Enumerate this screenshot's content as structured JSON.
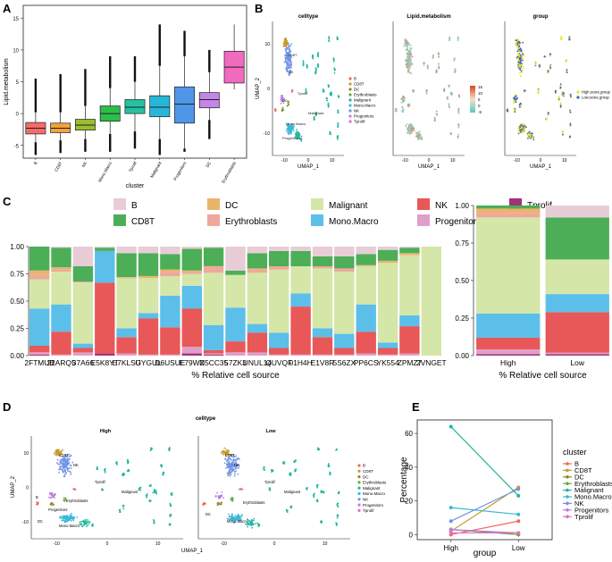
{
  "panel_labels": {
    "a": "A",
    "b": "B",
    "c": "C",
    "d": "D",
    "e": "E"
  },
  "colors": {
    "B": "#E8CDD6",
    "CD8T": "#4DAE58",
    "DC": "#EBB46C",
    "Erythroblasts": "#EFA89A",
    "Malignant": "#D4E6A8",
    "Mono.Macro": "#5BBFEA",
    "NK": "#E85858",
    "Progenitors": "#E09FC8",
    "Tprolif": "#A0337A",
    "High": "#E6E62A",
    "Low": "#3D62C8"
  },
  "chart_data": [
    {
      "id": "A",
      "type": "box",
      "title": "",
      "xlabel": "cluster",
      "ylabel": "Lipid.metabolism",
      "ylim": [
        -7,
        17
      ],
      "yticks": [
        -5,
        0,
        5,
        10,
        15
      ],
      "categories": [
        "B",
        "CD8T",
        "NK",
        "Mono.Macro",
        "Tprolif",
        "Malignant",
        "Progenitors",
        "DC",
        "Erythroblasts"
      ],
      "boxes": [
        {
          "name": "B",
          "color": "#F46B6B",
          "whislo": -4.5,
          "q1": -3.2,
          "med": -2.3,
          "q3": -1.4,
          "whishi": 0.2,
          "outlo": -6.5,
          "outhi": 5.5
        },
        {
          "name": "CD8T",
          "color": "#F2A33A",
          "whislo": -4.2,
          "q1": -3.0,
          "med": -2.3,
          "q3": -1.5,
          "whishi": 0.2,
          "outlo": -6.2,
          "outhi": 6.2
        },
        {
          "name": "NK",
          "color": "#9BBE2E",
          "whislo": -4.0,
          "q1": -2.6,
          "med": -1.8,
          "q3": -0.9,
          "whishi": 1.2,
          "outlo": -6.0,
          "outhi": 7.0
        },
        {
          "name": "Mono.Macro",
          "color": "#2DBE4A",
          "whislo": -3.2,
          "q1": -1.2,
          "med": 0.0,
          "q3": 1.2,
          "whishi": 4.0,
          "outlo": -6.0,
          "outhi": 9.0
        },
        {
          "name": "Tprolif",
          "color": "#27C0A0",
          "whislo": -2.8,
          "q1": 0.0,
          "med": 1.0,
          "q3": 2.2,
          "whishi": 5.0,
          "outlo": -5.5,
          "outhi": 9.0
        },
        {
          "name": "Malignant",
          "color": "#28B6D8",
          "whislo": -4.0,
          "q1": -0.5,
          "med": 1.0,
          "q3": 2.8,
          "whishi": 7.5,
          "outlo": -6.5,
          "outhi": 14.0
        },
        {
          "name": "Progenitors",
          "color": "#4F96E8",
          "whislo": -5.5,
          "q1": -1.5,
          "med": 1.5,
          "q3": 4.2,
          "whishi": 9.0,
          "outlo": -6.0,
          "outhi": 13.0
        },
        {
          "name": "DC",
          "color": "#C485E8",
          "whislo": -1.0,
          "q1": 0.9,
          "med": 2.2,
          "q3": 3.3,
          "whishi": 6.5,
          "outlo": -4.0,
          "outhi": 10.0
        },
        {
          "name": "Erythroblasts",
          "color": "#F06ABE",
          "whislo": 3.8,
          "q1": 4.8,
          "med": 7.3,
          "q3": 9.8,
          "whishi": 14.0,
          "outlo": null,
          "outhi": null
        }
      ]
    },
    {
      "id": "B1",
      "type": "scatter",
      "title": "celltype",
      "xlabel": "UMAP_1",
      "ylabel": "UMAP_2",
      "xticks": [
        -10,
        0,
        10
      ],
      "yticks": [
        -10,
        0,
        10
      ],
      "annotations": [
        "Malignant",
        "Mono.Macro",
        "Progenitors",
        "CD8T",
        "NK",
        "DC",
        "Tprolif"
      ],
      "legend": [
        "B",
        "CD8T",
        "DC",
        "Erythroblasts",
        "Malignant",
        "Mono.Macro",
        "NK",
        "Progenitors",
        "Tprolif"
      ]
    },
    {
      "id": "B2",
      "type": "scatter",
      "title": "Lipid.metabolism",
      "xlabel": "UMAP_1",
      "ylabel": "",
      "xticks": [
        -10,
        0,
        10
      ],
      "colorbar": {
        "ticks": [
          "15",
          "10",
          "5",
          "0",
          "-5"
        ],
        "low": "#5EC8C0",
        "high": "#D9441F"
      }
    },
    {
      "id": "B3",
      "type": "scatter",
      "title": "group",
      "xlabel": "UMAP_1",
      "ylabel": "",
      "xticks": [
        -10,
        0,
        10
      ],
      "legend": [
        "High.score.group",
        "Low.score.group"
      ]
    },
    {
      "id": "C1",
      "type": "stacked_bar",
      "xlabel": "% Relative cell source",
      "ylabel": "",
      "ylim": [
        0,
        1
      ],
      "yticks": [
        "0.00",
        "0.25",
        "0.50",
        "0.75",
        "1.00"
      ],
      "order": [
        "Tprolif",
        "Progenitors",
        "NK",
        "Mono.Macro",
        "Malignant",
        "Erythroblasts",
        "DC",
        "CD8T",
        "B"
      ],
      "categories": [
        "2FTMUB",
        "22ARQ5",
        "37A66",
        "E5K8YT",
        "E7KLSU",
        "GYGUL",
        "D6USUE",
        "E79WZ",
        "N5CC35",
        "57ZK3",
        "UNUL14",
        "QUVQF",
        "01H4H",
        "E1V8R",
        "5S6ZX",
        "PP6CS",
        "YK554",
        "ZPMZ7",
        "2VNGET"
      ],
      "series": [
        {
          "name": "Tprolif",
          "values": [
            0.01,
            0.0,
            0.0,
            0.02,
            0.0,
            0.0,
            0.0,
            0.02,
            0.01,
            0.0,
            0.0,
            0.0,
            0.0,
            0.0,
            0.0,
            0.0,
            0.0,
            0.0,
            0.0
          ]
        },
        {
          "name": "Progenitors",
          "values": [
            0.02,
            0.01,
            0.03,
            0.0,
            0.02,
            0.01,
            0.01,
            0.06,
            0.01,
            0.03,
            0.03,
            0.01,
            0.01,
            0.01,
            0.01,
            0.02,
            0.01,
            0.02,
            0.0
          ]
        },
        {
          "name": "NK",
          "values": [
            0.06,
            0.21,
            0.04,
            0.65,
            0.15,
            0.33,
            0.25,
            0.35,
            0.03,
            0.1,
            0.18,
            0.06,
            0.44,
            0.16,
            0.06,
            0.2,
            0.06,
            0.25,
            0.0
          ]
        },
        {
          "name": "Mono.Macro",
          "values": [
            0.34,
            0.25,
            0.04,
            0.29,
            0.08,
            0.05,
            0.29,
            0.21,
            0.23,
            0.31,
            0.08,
            0.14,
            0.12,
            0.08,
            0.13,
            0.25,
            0.05,
            0.1,
            0.0
          ]
        },
        {
          "name": "Malignant",
          "values": [
            0.27,
            0.3,
            0.56,
            0.0,
            0.46,
            0.32,
            0.18,
            0.11,
            0.48,
            0.3,
            0.47,
            0.58,
            0.25,
            0.55,
            0.57,
            0.35,
            0.73,
            0.55,
            1.0
          ]
        },
        {
          "name": "Erythroblasts",
          "values": [
            0.04,
            0.02,
            0.01,
            0.0,
            0.0,
            0.0,
            0.04,
            0.02,
            0.06,
            0.0,
            0.03,
            0.03,
            0.0,
            0.02,
            0.03,
            0.0,
            0.0,
            0.0,
            0.0
          ]
        },
        {
          "name": "DC",
          "values": [
            0.04,
            0.02,
            0.0,
            0.0,
            0.01,
            0.02,
            0.02,
            0.01,
            0.0,
            0.0,
            0.01,
            0.0,
            0.0,
            0.0,
            0.0,
            0.01,
            0.02,
            0.02,
            0.0
          ]
        },
        {
          "name": "CD8T",
          "values": [
            0.22,
            0.18,
            0.14,
            0.03,
            0.22,
            0.21,
            0.14,
            0.2,
            0.17,
            0.04,
            0.14,
            0.14,
            0.14,
            0.09,
            0.11,
            0.1,
            0.1,
            0.05,
            0.0
          ]
        },
        {
          "name": "B",
          "values": [
            0.0,
            0.01,
            0.18,
            0.01,
            0.06,
            0.06,
            0.07,
            0.02,
            0.01,
            0.22,
            0.06,
            0.04,
            0.04,
            0.09,
            0.09,
            0.07,
            0.03,
            0.01,
            0.0
          ]
        }
      ]
    },
    {
      "id": "C2",
      "type": "stacked_bar",
      "xlabel": "% Relative cell source",
      "ylabel": "",
      "ylim": [
        0,
        1
      ],
      "yticks": [
        "0.00",
        "0.25",
        "0.50",
        "0.75",
        "1.00"
      ],
      "order": [
        "Tprolif",
        "Progenitors",
        "NK",
        "Mono.Macro",
        "Malignant",
        "Erythroblasts",
        "DC",
        "CD8T",
        "B"
      ],
      "categories": [
        "High",
        "Low"
      ],
      "series": [
        {
          "name": "Tprolif",
          "values": [
            0.01,
            0.01
          ]
        },
        {
          "name": "Progenitors",
          "values": [
            0.03,
            0.01
          ]
        },
        {
          "name": "NK",
          "values": [
            0.08,
            0.27
          ]
        },
        {
          "name": "Mono.Macro",
          "values": [
            0.16,
            0.12
          ]
        },
        {
          "name": "Malignant",
          "values": [
            0.64,
            0.23
          ]
        },
        {
          "name": "Erythroblasts",
          "values": [
            0.03,
            0.0
          ]
        },
        {
          "name": "DC",
          "values": [
            0.03,
            0.0
          ]
        },
        {
          "name": "CD8T",
          "values": [
            0.02,
            0.28
          ]
        },
        {
          "name": "B",
          "values": [
            0.0,
            0.08
          ]
        }
      ]
    },
    {
      "id": "D",
      "type": "scatter",
      "title": "celltype",
      "xlabel": "UMAP_1",
      "ylabel": "UMAP_2",
      "facets": [
        "High",
        "Low"
      ],
      "xticks": [
        -10,
        0,
        10
      ],
      "yticks": [
        -10,
        0,
        10
      ],
      "annotations_high": [
        "CD8T",
        "NK",
        "Tprolif",
        "Malignant",
        "Erythroblasts",
        "Progenitors",
        "DC",
        "Mono.Macro",
        "B"
      ],
      "annotations_low": [
        "CD8T",
        "NK",
        "Tprolif",
        "Malignant",
        "Erythroblasts",
        "DC",
        "Mono.Macro"
      ],
      "legend": [
        "B",
        "CD8T",
        "DC",
        "Erythroblasts",
        "Malignant",
        "Mono.Macro",
        "NK",
        "Progenitors",
        "Tprolif"
      ]
    },
    {
      "id": "E",
      "type": "line",
      "xlabel": "group",
      "ylabel": "Percentage",
      "x": [
        "High",
        "Low"
      ],
      "ylim": [
        -3,
        68
      ],
      "yticks": [
        0,
        20,
        40,
        60
      ],
      "legend_title": "cluster",
      "series": [
        {
          "name": "B",
          "values": [
            0,
            8
          ]
        },
        {
          "name": "CD8T",
          "values": [
            2,
            28
          ]
        },
        {
          "name": "DC",
          "values": [
            3,
            0
          ]
        },
        {
          "name": "Erythroblasts",
          "values": [
            3,
            0
          ]
        },
        {
          "name": "Malignant",
          "values": [
            64,
            23
          ]
        },
        {
          "name": "Mono.Macro",
          "values": [
            16,
            12
          ]
        },
        {
          "name": "NK",
          "values": [
            8,
            27
          ]
        },
        {
          "name": "Progenitors",
          "values": [
            3,
            1
          ]
        },
        {
          "name": "Tprolif",
          "values": [
            1,
            1
          ]
        }
      ]
    }
  ]
}
